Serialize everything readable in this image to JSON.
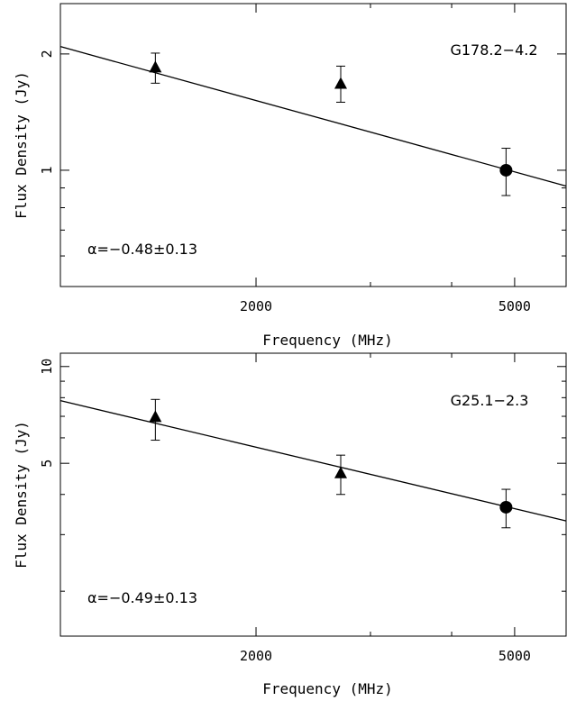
{
  "chart_data": [
    {
      "type": "scatter",
      "title": "",
      "annotation": "G178.2−4.2",
      "alpha_label": "α=−0.48±0.13",
      "xlabel": "Frequency (MHz)",
      "ylabel": "Flux Density (Jy)",
      "xscale": "log",
      "yscale": "log",
      "xlim": [
        1000,
        6000
      ],
      "ylim": [
        0.5,
        2.7
      ],
      "xticks": [
        {
          "value": 2000,
          "label": "2000"
        },
        {
          "value": 5000,
          "label": "5000"
        }
      ],
      "yticks": [
        {
          "value": 1,
          "label": "1"
        },
        {
          "value": 2,
          "label": "2"
        }
      ],
      "fit_line": {
        "x": [
          1000,
          6000
        ],
        "y": [
          2.09,
          0.91
        ]
      },
      "points": [
        {
          "x": 1400,
          "y": 1.84,
          "err_low": 1.68,
          "err_high": 2.01,
          "marker": "triangle"
        },
        {
          "x": 2700,
          "y": 1.67,
          "err_low": 1.5,
          "err_high": 1.86,
          "marker": "triangle"
        },
        {
          "x": 4850,
          "y": 1.0,
          "err_low": 0.86,
          "err_high": 1.14,
          "marker": "circle"
        }
      ],
      "grid": false,
      "legend": "none"
    },
    {
      "type": "scatter",
      "title": "",
      "annotation": "G25.1−2.3",
      "alpha_label": "α=−0.49±0.13",
      "xlabel": "Frequency (MHz)",
      "ylabel": "Flux Density (Jy)",
      "xscale": "log",
      "yscale": "log",
      "xlim": [
        1000,
        6000
      ],
      "ylim": [
        1.45,
        11.0
      ],
      "xticks": [
        {
          "value": 2000,
          "label": "2000"
        },
        {
          "value": 5000,
          "label": "5000"
        }
      ],
      "yticks": [
        {
          "value": 5,
          "label": "5"
        },
        {
          "value": 10,
          "label": "10"
        }
      ],
      "fit_line": {
        "x": [
          1000,
          6000
        ],
        "y": [
          7.83,
          3.31
        ]
      },
      "points": [
        {
          "x": 1400,
          "y": 6.94,
          "err_low": 5.9,
          "err_high": 7.9,
          "marker": "triangle"
        },
        {
          "x": 2700,
          "y": 4.64,
          "err_low": 4.0,
          "err_high": 5.3,
          "marker": "triangle"
        },
        {
          "x": 4850,
          "y": 3.65,
          "err_low": 3.15,
          "err_high": 4.15,
          "marker": "circle"
        }
      ],
      "grid": false,
      "legend": "none"
    }
  ]
}
